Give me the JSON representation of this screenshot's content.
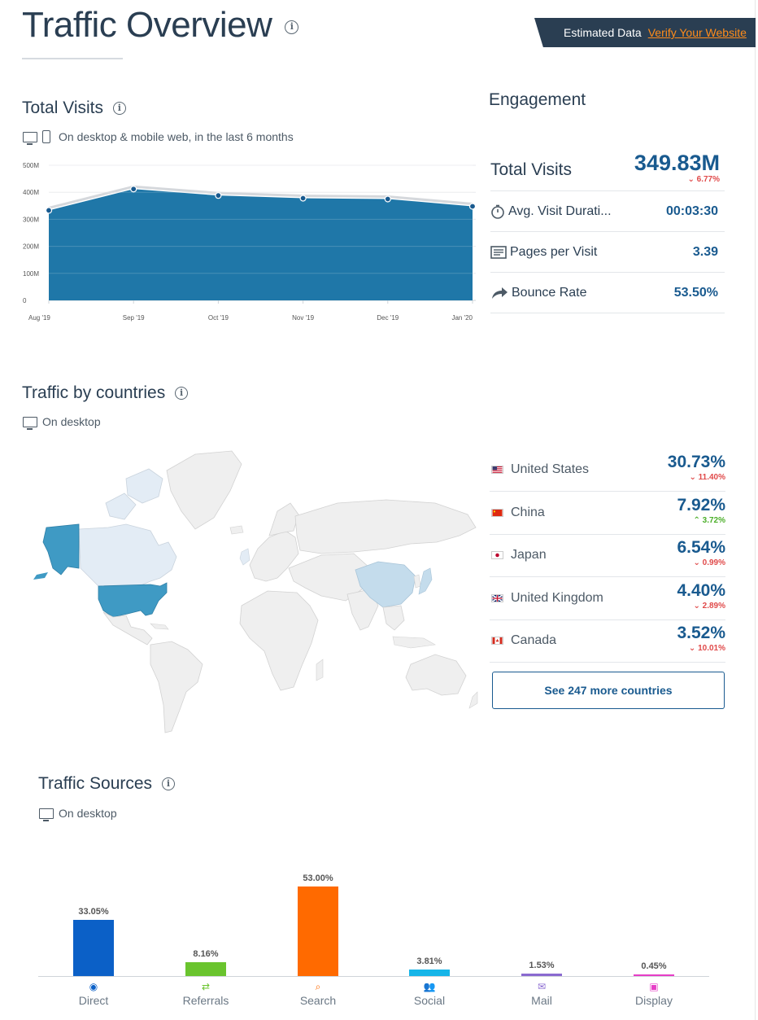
{
  "header": {
    "title": "Traffic Overview",
    "banner_text": "Estimated Data",
    "banner_link": "Verify Your Website"
  },
  "total_visits": {
    "title": "Total Visits",
    "subtitle": "On desktop & mobile web, in the last 6 months"
  },
  "chart_data": [
    {
      "type": "area",
      "title": "Total Visits",
      "categories": [
        "Aug '19",
        "Sep '19",
        "Oct '19",
        "Nov '19",
        "Dec '19",
        "Jan '20"
      ],
      "values": [
        333,
        412,
        388,
        378,
        375,
        348
      ],
      "y_ticks": [
        "0",
        "100M",
        "200M",
        "300M",
        "400M",
        "500M"
      ],
      "ylim": [
        0,
        500
      ],
      "grid": true,
      "color": "#1f77a8"
    },
    {
      "type": "bar",
      "title": "Traffic Sources",
      "categories": [
        "Direct",
        "Referrals",
        "Search",
        "Social",
        "Mail",
        "Display"
      ],
      "values": [
        33.05,
        8.16,
        53.0,
        3.81,
        1.53,
        0.45
      ],
      "labels": [
        "33.05%",
        "8.16%",
        "53.00%",
        "3.81%",
        "1.53%",
        "0.45%"
      ],
      "colors": [
        "#0b60c7",
        "#6ac42e",
        "#ff6a00",
        "#16b5e8",
        "#8a6ad0",
        "#e63ec6"
      ]
    }
  ],
  "engagement": {
    "title": "Engagement",
    "total_visits_label": "Total Visits",
    "total_visits_value": "349.83M",
    "total_visits_change": "6.77%",
    "rows": [
      {
        "label": "Avg. Visit Durati...",
        "value": "00:03:30",
        "icon": "stopwatch-icon"
      },
      {
        "label": "Pages per Visit",
        "value": "3.39",
        "icon": "pages-icon"
      },
      {
        "label": "Bounce Rate",
        "value": "53.50%",
        "icon": "bounce-arrow-icon"
      }
    ]
  },
  "countries": {
    "title": "Traffic by countries",
    "subtitle": "On desktop",
    "items": [
      {
        "name": "United States",
        "pct": "30.73%",
        "change": "11.40%",
        "dir": "down"
      },
      {
        "name": "China",
        "pct": "7.92%",
        "change": "3.72%",
        "dir": "up"
      },
      {
        "name": "Japan",
        "pct": "6.54%",
        "change": "0.99%",
        "dir": "down"
      },
      {
        "name": "United Kingdom",
        "pct": "4.40%",
        "change": "2.89%",
        "dir": "down"
      },
      {
        "name": "Canada",
        "pct": "3.52%",
        "change": "10.01%",
        "dir": "down"
      }
    ],
    "see_more": "See 247 more countries"
  },
  "sources": {
    "title": "Traffic Sources",
    "subtitle": "On desktop"
  }
}
